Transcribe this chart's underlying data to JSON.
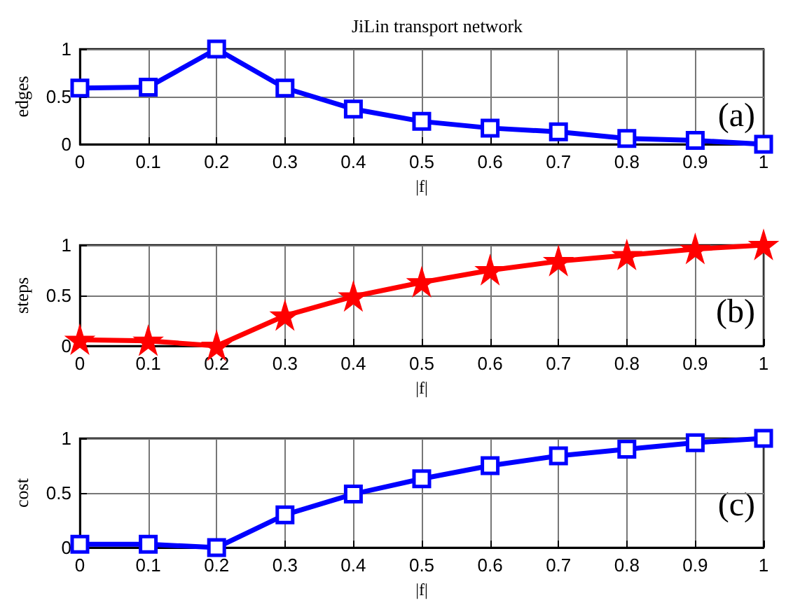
{
  "chart_data": [
    {
      "type": "line",
      "title": "JiLin transport network",
      "xlabel": "|f|",
      "ylabel": "edges",
      "annotations": [
        "(a)"
      ],
      "x": [
        0,
        0.1,
        0.2,
        0.3,
        0.4,
        0.5,
        0.6,
        0.7,
        0.8,
        0.9,
        1
      ],
      "series": [
        {
          "color": "#0000ff",
          "marker": "square",
          "values": [
            0.59,
            0.6,
            1,
            0.59,
            0.37,
            0.24,
            0.17,
            0.13,
            0.06,
            0.04,
            0
          ]
        }
      ],
      "xlim": [
        0,
        1
      ],
      "xticks": [
        0,
        0.1,
        0.2,
        0.3,
        0.4,
        0.5,
        0.6,
        0.7,
        0.8,
        0.9,
        1
      ],
      "ylim": [
        0,
        1
      ],
      "yticks": [
        0,
        0.5,
        1
      ],
      "grid": true,
      "line_style": "solid"
    },
    {
      "type": "line",
      "xlabel": "|f|",
      "ylabel": "steps",
      "annotations": [
        "(b)"
      ],
      "x": [
        0,
        0.1,
        0.2,
        0.3,
        0.4,
        0.5,
        0.6,
        0.7,
        0.8,
        0.9,
        1
      ],
      "series": [
        {
          "color": "#ff0000",
          "marker": "star",
          "values": [
            0.06,
            0.05,
            0,
            0.3,
            0.49,
            0.63,
            0.75,
            0.84,
            0.9,
            0.96,
            1
          ]
        }
      ],
      "xlim": [
        0,
        1
      ],
      "xticks": [
        0,
        0.1,
        0.2,
        0.3,
        0.4,
        0.5,
        0.6,
        0.7,
        0.8,
        0.9,
        1
      ],
      "ylim": [
        0,
        1
      ],
      "yticks": [
        0,
        0.5,
        1
      ],
      "grid": true,
      "line_style": "solid"
    },
    {
      "type": "line",
      "xlabel": "|f|",
      "ylabel": "cost",
      "annotations": [
        "(c)"
      ],
      "x": [
        0,
        0.1,
        0.2,
        0.3,
        0.4,
        0.5,
        0.6,
        0.7,
        0.8,
        0.9,
        1
      ],
      "series": [
        {
          "color": "#0000ff",
          "marker": "square",
          "values": [
            0.03,
            0.03,
            0,
            0.3,
            0.49,
            0.63,
            0.75,
            0.84,
            0.9,
            0.96,
            1
          ]
        }
      ],
      "xlim": [
        0,
        1
      ],
      "xticks": [
        0,
        0.1,
        0.2,
        0.3,
        0.4,
        0.5,
        0.6,
        0.7,
        0.8,
        0.9,
        1
      ],
      "ylim": [
        0,
        1
      ],
      "yticks": [
        0,
        0.5,
        1
      ],
      "grid": true,
      "line_style": "solid"
    }
  ]
}
